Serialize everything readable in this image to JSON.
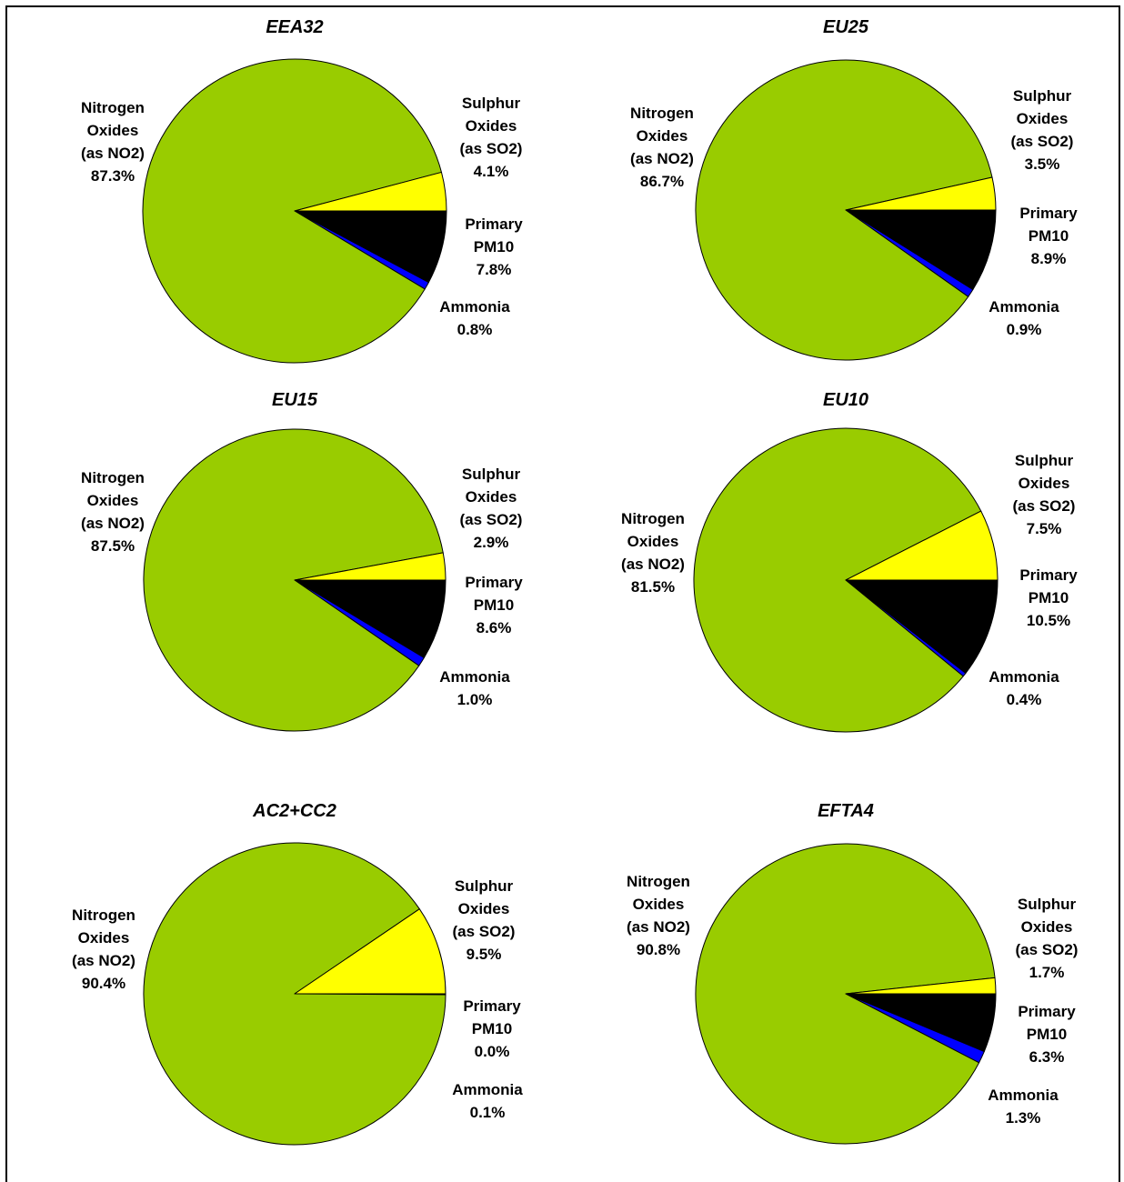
{
  "chart_data": [
    {
      "type": "pie",
      "title": "EEA32",
      "slices": [
        {
          "name_lines": [
            "Nitrogen",
            "Oxides",
            "(as NO2)"
          ],
          "percent_label": "87.3%",
          "value": 87.3,
          "color": "#99cc00"
        },
        {
          "name_lines": [
            "Sulphur",
            "Oxides",
            "(as SO2)"
          ],
          "percent_label": "4.1%",
          "value": 4.1,
          "color": "#ffff00"
        },
        {
          "name_lines": [
            "Primary",
            "PM10"
          ],
          "percent_label": "7.8%",
          "value": 7.8,
          "color": "#000000"
        },
        {
          "name_lines": [
            "Ammonia"
          ],
          "percent_label": "0.8%",
          "value": 0.8,
          "color": "#0000ff"
        }
      ]
    },
    {
      "type": "pie",
      "title": "EU25",
      "slices": [
        {
          "name_lines": [
            "Nitrogen",
            "Oxides",
            "(as NO2)"
          ],
          "percent_label": "86.7%",
          "value": 86.7,
          "color": "#99cc00"
        },
        {
          "name_lines": [
            "Sulphur",
            "Oxides",
            "(as SO2)"
          ],
          "percent_label": "3.5%",
          "value": 3.5,
          "color": "#ffff00"
        },
        {
          "name_lines": [
            "Primary",
            "PM10"
          ],
          "percent_label": "8.9%",
          "value": 8.9,
          "color": "#000000"
        },
        {
          "name_lines": [
            "Ammonia"
          ],
          "percent_label": "0.9%",
          "value": 0.9,
          "color": "#0000ff"
        }
      ]
    },
    {
      "type": "pie",
      "title": "EU15",
      "slices": [
        {
          "name_lines": [
            "Nitrogen",
            "Oxides",
            "(as NO2)"
          ],
          "percent_label": "87.5%",
          "value": 87.5,
          "color": "#99cc00"
        },
        {
          "name_lines": [
            "Sulphur",
            "Oxides",
            "(as SO2)"
          ],
          "percent_label": "2.9%",
          "value": 2.9,
          "color": "#ffff00"
        },
        {
          "name_lines": [
            "Primary",
            "PM10"
          ],
          "percent_label": "8.6%",
          "value": 8.6,
          "color": "#000000"
        },
        {
          "name_lines": [
            "Ammonia"
          ],
          "percent_label": "1.0%",
          "value": 1.0,
          "color": "#0000ff"
        }
      ]
    },
    {
      "type": "pie",
      "title": "EU10",
      "slices": [
        {
          "name_lines": [
            "Nitrogen",
            "Oxides",
            "(as NO2)"
          ],
          "percent_label": "81.5%",
          "value": 81.5,
          "color": "#99cc00"
        },
        {
          "name_lines": [
            "Sulphur",
            "Oxides",
            "(as SO2)"
          ],
          "percent_label": "7.5%",
          "value": 7.5,
          "color": "#ffff00"
        },
        {
          "name_lines": [
            "Primary",
            "PM10"
          ],
          "percent_label": "10.5%",
          "value": 10.5,
          "color": "#000000"
        },
        {
          "name_lines": [
            "Ammonia"
          ],
          "percent_label": "0.4%",
          "value": 0.4,
          "color": "#0000ff"
        }
      ]
    },
    {
      "type": "pie",
      "title": "AC2+CC2",
      "slices": [
        {
          "name_lines": [
            "Nitrogen",
            "Oxides",
            "(as NO2)"
          ],
          "percent_label": "90.4%",
          "value": 90.4,
          "color": "#99cc00"
        },
        {
          "name_lines": [
            "Sulphur",
            "Oxides",
            "(as SO2)"
          ],
          "percent_label": "9.5%",
          "value": 9.5,
          "color": "#ffff00"
        },
        {
          "name_lines": [
            "Primary",
            "PM10"
          ],
          "percent_label": "0.0%",
          "value": 0.0,
          "color": "#000000"
        },
        {
          "name_lines": [
            "Ammonia"
          ],
          "percent_label": "0.1%",
          "value": 0.1,
          "color": "#0000ff"
        }
      ]
    },
    {
      "type": "pie",
      "title": "EFTA4",
      "slices": [
        {
          "name_lines": [
            "Nitrogen",
            "Oxides",
            "(as NO2)"
          ],
          "percent_label": "90.8%",
          "value": 90.8,
          "color": "#99cc00"
        },
        {
          "name_lines": [
            "Sulphur",
            "Oxides",
            "(as SO2)"
          ],
          "percent_label": "1.7%",
          "value": 1.7,
          "color": "#ffff00"
        },
        {
          "name_lines": [
            "Primary",
            "PM10"
          ],
          "percent_label": "6.3%",
          "value": 6.3,
          "color": "#000000"
        },
        {
          "name_lines": [
            "Ammonia"
          ],
          "percent_label": "1.3%",
          "value": 1.3,
          "color": "#0000ff"
        }
      ]
    }
  ]
}
